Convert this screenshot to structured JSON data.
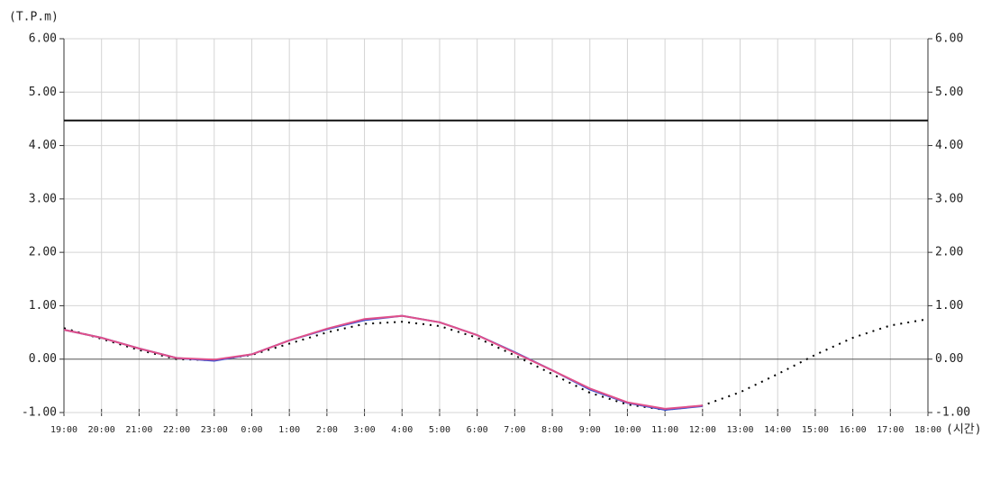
{
  "chart_data": {
    "type": "line",
    "y_label": "(T.P.m)",
    "x_label": "(시간)",
    "categories": [
      "19:00",
      "20:00",
      "21:00",
      "22:00",
      "23:00",
      "0:00",
      "1:00",
      "2:00",
      "3:00",
      "4:00",
      "5:00",
      "6:00",
      "7:00",
      "8:00",
      "9:00",
      "10:00",
      "11:00",
      "12:00",
      "13:00",
      "14:00",
      "15:00",
      "16:00",
      "17:00",
      "18:00"
    ],
    "series": [
      {
        "color": "#000000",
        "dash": "2,6",
        "values": [
          0.58,
          0.38,
          0.17,
          0.0,
          -0.02,
          0.08,
          0.29,
          0.5,
          0.66,
          0.7,
          0.62,
          0.4,
          0.07,
          -0.28,
          -0.63,
          -0.85,
          -0.95,
          -0.87,
          -0.62,
          -0.28,
          0.08,
          0.4,
          0.63,
          0.75
        ]
      },
      {
        "color": "#3a4fd0",
        "values": [
          0.55,
          0.4,
          0.2,
          0.02,
          -0.03,
          0.09,
          0.35,
          0.56,
          0.73,
          0.81,
          0.69,
          0.45,
          0.13,
          -0.21,
          -0.57,
          -0.82,
          -0.95,
          -0.88,
          null,
          null,
          null,
          null,
          null,
          null
        ]
      },
      {
        "color": "#e0508a",
        "values": [
          0.55,
          0.4,
          0.2,
          0.02,
          -0.01,
          0.09,
          0.35,
          0.57,
          0.75,
          0.81,
          0.69,
          0.45,
          0.12,
          -0.21,
          -0.55,
          -0.81,
          -0.93,
          -0.87,
          null,
          null,
          null,
          null,
          null,
          null
        ]
      }
    ],
    "threshold": 4.47,
    "ylim": [
      -1,
      6
    ],
    "yticks": [
      {
        "value": -1,
        "label": "-1.00"
      },
      {
        "value": 0,
        "label": "0.00"
      },
      {
        "value": 1,
        "label": "1.00"
      },
      {
        "value": 2,
        "label": "2.00"
      },
      {
        "value": 3,
        "label": "3.00"
      },
      {
        "value": 4,
        "label": "4.00"
      },
      {
        "value": 5,
        "label": "5.00"
      },
      {
        "value": 6,
        "label": "6.00"
      }
    ],
    "grid": true
  }
}
